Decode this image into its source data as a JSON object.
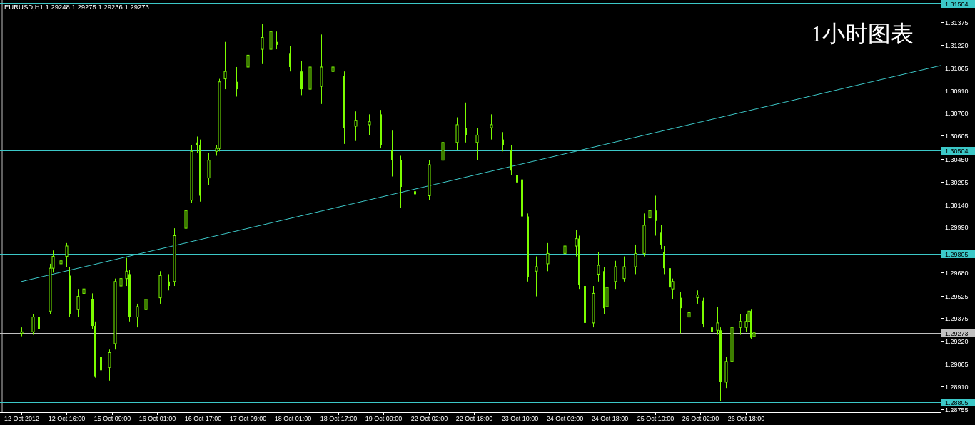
{
  "chart_data": {
    "type": "candlestick",
    "title": "EURUSD,H1  1.29248 1.29275 1.29236 1.29273",
    "annotations": [
      "1小时图表"
    ],
    "color": "#7cfc00",
    "categories": [
      "12 Oct 2012",
      null,
      null,
      null,
      null,
      null,
      null,
      null,
      null,
      null,
      null,
      null,
      null,
      null,
      null,
      null,
      "12 Oct 16:00",
      null,
      null,
      null,
      null,
      null,
      null,
      null,
      null,
      null,
      null,
      null,
      null,
      null,
      null,
      null,
      "15 Oct 09:00",
      null,
      null,
      null,
      null,
      null,
      null,
      null,
      null,
      null,
      null,
      null,
      null,
      null,
      null,
      null,
      "16 Oct 01:00",
      null,
      null,
      null,
      null,
      null,
      null,
      null,
      null,
      null,
      null,
      null,
      null,
      null,
      null,
      null,
      "16 Oct 17:00",
      null,
      null,
      null,
      null,
      null,
      null,
      null,
      null,
      null,
      null,
      null,
      null,
      null,
      null,
      null,
      "17 Oct 09:00",
      null,
      null,
      null,
      null,
      null,
      null,
      null,
      null,
      null,
      null,
      null,
      null,
      null,
      null,
      null,
      "18 Oct 01:00",
      null,
      null,
      null,
      null,
      null,
      null,
      null,
      null,
      null,
      null,
      null,
      null,
      null,
      null,
      null,
      "18 Oct 17:00",
      null,
      null,
      null,
      null,
      null,
      null,
      null,
      null,
      null,
      null,
      null,
      null,
      null,
      null,
      null,
      "19 Oct 09:00",
      null,
      null,
      null,
      null,
      null,
      null,
      null,
      null,
      null,
      null,
      null,
      null,
      null,
      null,
      null,
      "22 Oct 02:00",
      null,
      null,
      null,
      null,
      null,
      null,
      null,
      null,
      null,
      null,
      null,
      null,
      null,
      null,
      null,
      "22 Oct 18:00",
      null,
      null,
      null,
      null,
      null,
      null,
      null,
      null,
      null,
      null,
      null,
      null,
      null,
      null,
      null,
      "23 Oct 10:00",
      null,
      null,
      null,
      null,
      null,
      null,
      null,
      null,
      null,
      null,
      null,
      null,
      null,
      null,
      null,
      "24 Oct 02:00",
      null,
      null,
      null,
      null,
      null,
      null,
      null,
      null,
      null,
      null,
      null,
      null,
      null,
      null,
      null,
      "24 Oct 18:00",
      null,
      null,
      null,
      null,
      null,
      null,
      null,
      null,
      null,
      null,
      null,
      null,
      null,
      null,
      null,
      "25 Oct 10:00",
      null,
      null,
      null,
      null,
      null,
      null,
      null,
      null,
      null,
      null,
      null,
      null,
      null,
      null,
      null,
      "26 Oct 02:00",
      null,
      null,
      null,
      null,
      null,
      null,
      null,
      null,
      null,
      null,
      null,
      null,
      null,
      null,
      null,
      "26 Oct 18:00",
      null,
      null,
      null,
      null,
      null,
      null,
      null,
      null,
      null,
      null,
      null,
      null,
      null,
      null,
      null,
      null,
      null,
      null,
      null,
      null,
      null,
      null,
      null,
      null,
      null,
      null,
      null,
      null,
      null,
      null,
      null,
      null,
      null,
      null,
      null,
      null,
      null,
      null,
      null,
      null,
      null,
      null,
      null,
      null,
      null,
      null,
      null,
      null,
      null,
      null,
      null,
      null,
      null,
      null,
      null,
      null,
      null,
      null,
      null,
      null,
      null,
      null,
      null,
      null,
      null,
      null,
      null,
      null,
      null
    ],
    "ohlc": [
      [
        1.2927,
        1.2931,
        1.2925,
        1.2928
      ],
      null,
      null,
      null,
      [
        1.2928,
        1.294,
        1.2926,
        1.2938
      ],
      null,
      [
        1.2938,
        1.2943,
        1.2926,
        1.293
      ],
      null,
      null,
      null,
      [
        1.2942,
        1.2974,
        1.294,
        1.2971
      ],
      [
        1.2971,
        1.2983,
        1.2968,
        1.2979
      ],
      null,
      null,
      [
        1.2974,
        1.2986,
        1.2964,
        1.2976
      ],
      null,
      [
        1.2979,
        1.2988,
        1.2972,
        1.2986
      ],
      [
        1.2966,
        1.2972,
        1.2938,
        1.294
      ],
      null,
      null,
      [
        1.2943,
        1.2957,
        1.2938,
        1.2952
      ],
      null,
      [
        1.2954,
        1.2959,
        1.2947,
        1.2957
      ],
      null,
      null,
      [
        1.295,
        1.2954,
        1.293,
        1.2932
      ],
      [
        1.2932,
        1.2935,
        1.2897,
        1.2898
      ],
      null,
      [
        1.2911,
        1.2914,
        1.2892,
        1.2902
      ],
      null,
      null,
      [
        1.2904,
        1.2916,
        1.2895,
        1.2914
      ],
      null,
      [
        1.292,
        1.2964,
        1.2916,
        1.2962
      ],
      null,
      [
        1.2959,
        1.2969,
        1.2952,
        1.2964
      ],
      null,
      [
        1.2964,
        1.2978,
        1.2959,
        1.2969
      ],
      [
        1.2967,
        1.297,
        1.2935,
        1.2938
      ],
      null,
      null,
      [
        1.2938,
        1.2947,
        1.2931,
        1.2945
      ],
      null,
      null,
      [
        1.2943,
        1.2952,
        1.2935,
        1.295
      ],
      null,
      null,
      null,
      null,
      [
        1.2951,
        1.2969,
        1.2947,
        1.2966
      ],
      null,
      null,
      [
        1.2962,
        1.2967,
        1.2956,
        1.2959
      ],
      null,
      [
        1.2962,
        1.2998,
        1.2959,
        1.2993
      ],
      null,
      null,
      null,
      [
        1.2998,
        1.3013,
        1.2993,
        1.301
      ],
      null,
      [
        1.3017,
        1.3054,
        1.3015,
        1.305
      ],
      null,
      [
        1.3056,
        1.306,
        1.3049,
        1.3054
      ],
      [
        1.3054,
        1.3058,
        1.3016,
        1.302
      ],
      null,
      null,
      [
        1.3032,
        1.3049,
        1.3027,
        1.3044
      ],
      null,
      null,
      [
        1.305,
        1.3054,
        1.3047,
        1.3052
      ],
      [
        1.3052,
        1.3099,
        1.305,
        1.3097
      ],
      null,
      [
        1.3099,
        1.3124,
        1.3092,
        1.3104
      ],
      null,
      null,
      null,
      [
        1.3097,
        1.3107,
        1.3087,
        1.3092
      ],
      null,
      null,
      null,
      [
        1.3107,
        1.3118,
        1.3099,
        1.3115
      ],
      null,
      null,
      null,
      null,
      [
        1.3119,
        1.3136,
        1.3109,
        1.3127
      ],
      null,
      null,
      [
        1.3119,
        1.3139,
        1.3114,
        1.3131
      ],
      null,
      [
        1.3124,
        1.3131,
        1.3119,
        1.3122
      ],
      null,
      null,
      null,
      null,
      [
        1.3116,
        1.3121,
        1.3104,
        1.3107
      ],
      null,
      null,
      null,
      [
        1.3104,
        1.3111,
        1.3088,
        1.3092
      ],
      null,
      null,
      [
        1.3092,
        1.312,
        1.309,
        1.3107
      ],
      null,
      null,
      null,
      [
        1.3094,
        1.3129,
        1.3082,
        1.3107
      ],
      null,
      null,
      null,
      [
        1.3104,
        1.3118,
        1.3094,
        1.3107
      ],
      null,
      null,
      null,
      [
        1.3101,
        1.3104,
        1.3055,
        1.3066
      ],
      null,
      null,
      null,
      [
        1.3067,
        1.3077,
        1.3057,
        1.3071
      ],
      null,
      null,
      null,
      null,
      [
        1.3068,
        1.3075,
        1.3061,
        1.307
      ],
      null,
      null,
      null,
      [
        1.3075,
        1.3078,
        1.3052,
        1.3054
      ],
      null,
      null,
      null,
      [
        1.3051,
        1.3064,
        1.3033,
        1.3044
      ],
      null,
      null,
      [
        1.3044,
        1.3047,
        1.3012,
        1.3026
      ],
      null,
      null,
      null,
      null,
      [
        1.3023,
        1.3029,
        1.3015,
        1.3021
      ],
      null,
      null,
      null,
      null,
      [
        1.302,
        1.3044,
        1.3017,
        1.3041
      ],
      null,
      null,
      null,
      null,
      [
        1.3044,
        1.3064,
        1.3024,
        1.3056
      ],
      null,
      null,
      null,
      null,
      [
        1.3056,
        1.3073,
        1.3051,
        1.3068
      ],
      null,
      null,
      [
        1.3066,
        1.3083,
        1.3056,
        1.3061
      ],
      null,
      null,
      null,
      [
        1.3056,
        1.3066,
        1.3044,
        1.3061
      ],
      null,
      null,
      null,
      null,
      [
        1.3066,
        1.3075,
        1.3058,
        1.3068
      ],
      null,
      null,
      null,
      [
        1.3058,
        1.3063,
        1.305,
        1.3054
      ],
      null,
      null,
      [
        1.3051,
        1.3054,
        1.3034,
        1.3037
      ],
      null,
      [
        1.3034,
        1.3041,
        1.3025,
        1.3029
      ],
      null,
      [
        1.3031,
        1.3034,
        1.2999,
        1.3006
      ],
      null,
      [
        1.3006,
        1.3008,
        1.2962,
        1.2965
      ],
      null,
      null,
      [
        1.2969,
        1.2979,
        1.2952,
        1.2972
      ],
      null,
      null,
      null,
      [
        1.2974,
        1.2988,
        1.2969,
        1.2981
      ],
      null,
      null,
      null,
      null,
      null,
      [
        1.2981,
        1.2993,
        1.2976,
        1.2986
      ],
      null,
      null,
      null,
      [
        1.2986,
        1.2997,
        1.2979,
        1.2991
      ],
      [
        1.2991,
        1.2993,
        1.2957,
        1.296
      ],
      null,
      [
        1.2959,
        1.2962,
        1.292,
        1.2934
      ],
      null,
      null,
      [
        1.2934,
        1.2959,
        1.2931,
        1.2954
      ],
      null,
      [
        1.2967,
        1.2982,
        1.2962,
        1.2973
      ],
      null,
      [
        1.2969,
        1.2972,
        1.294,
        1.2944
      ],
      [
        1.2945,
        1.2964,
        1.294,
        1.2958
      ],
      null,
      null,
      [
        1.2962,
        1.2976,
        1.2957,
        1.2972
      ],
      null,
      null,
      [
        1.2964,
        1.2979,
        1.2962,
        1.2972
      ],
      null,
      null,
      null,
      [
        1.2972,
        1.2987,
        1.2967,
        1.2981
      ],
      null,
      null,
      [
        1.2981,
        1.3008,
        1.2979,
        1.3
      ],
      null,
      [
        1.3005,
        1.3022,
        1.3003,
        1.301
      ],
      null,
      [
        1.301,
        1.302,
        1.2993,
        1.3003
      ],
      null,
      [
        1.2995,
        1.3,
        1.2984,
        1.2987
      ],
      [
        1.2982,
        1.2986,
        1.2967,
        1.2971
      ],
      null,
      [
        1.2971,
        1.2974,
        1.2955,
        1.2958
      ],
      [
        1.2957,
        1.2964,
        1.295,
        1.2962
      ],
      null,
      null,
      [
        1.2951,
        1.2955,
        1.2927,
        1.2944
      ],
      null,
      null,
      [
        1.2938,
        1.2947,
        1.2933,
        1.2941
      ],
      null,
      null,
      [
        1.2951,
        1.2956,
        1.2947,
        1.2953
      ],
      null,
      [
        1.2949,
        1.2951,
        1.2931,
        1.2933
      ],
      null,
      null,
      [
        1.2931,
        1.294,
        1.2915,
        1.2928
      ],
      null,
      [
        1.2929,
        1.2945,
        1.2926,
        1.2934
      ],
      [
        1.2929,
        1.2931,
        1.2881,
        1.2894
      ],
      null,
      [
        1.2894,
        1.2911,
        1.289,
        1.2908
      ],
      null,
      [
        1.2908,
        1.2955,
        1.2906,
        1.2931
      ],
      null,
      null,
      [
        1.2931,
        1.294,
        1.2926,
        1.2935
      ],
      null,
      [
        1.2931,
        1.294,
        1.2928,
        1.2935
      ],
      [
        1.2935,
        1.2943,
        1.2933,
        1.2942
      ],
      [
        1.2942,
        1.2943,
        1.2923,
        1.2924
      ],
      [
        1.29248,
        1.29275,
        1.29236,
        1.29273
      ],
      null,
      null,
      null,
      null,
      null,
      null,
      null,
      null,
      null,
      null,
      null,
      null,
      null,
      null,
      null,
      null,
      null,
      null,
      null,
      null,
      null,
      null,
      null,
      null,
      null,
      null,
      null,
      null,
      null,
      null,
      null,
      null,
      null,
      null,
      null,
      null,
      null,
      null,
      null,
      null,
      null,
      null,
      null,
      null,
      null,
      null,
      null,
      null,
      null,
      null,
      null,
      null,
      null,
      null,
      null,
      null,
      null,
      null,
      null,
      null,
      null,
      null,
      null,
      null,
      null,
      null
    ],
    "series": [
      {
        "type": "line",
        "color": "#3cc8c8",
        "values": [
          1.2962,
          null,
          null,
          null,
          null,
          null,
          null,
          null,
          null,
          null,
          null,
          null,
          null,
          null,
          null,
          null,
          null,
          null,
          null,
          null,
          null,
          null,
          null,
          null,
          null,
          null,
          null,
          null,
          null,
          null,
          null,
          null,
          null,
          null,
          null,
          null,
          null,
          null,
          null,
          null,
          null,
          null,
          null,
          null,
          null,
          null,
          null,
          null,
          null,
          null,
          null,
          null,
          null,
          null,
          null,
          null,
          null,
          null,
          null,
          null,
          null,
          null,
          null,
          null,
          null,
          null,
          null,
          null,
          null,
          null,
          null,
          null,
          null,
          null,
          null,
          null,
          null,
          null,
          null,
          null,
          null,
          null,
          null,
          null,
          null,
          null,
          null,
          null,
          null,
          null,
          null,
          null,
          null,
          null,
          null,
          null,
          null,
          null,
          null,
          null,
          null,
          null,
          null,
          null,
          null,
          null,
          null,
          null,
          null,
          null,
          null,
          null,
          null,
          null,
          null,
          null,
          null,
          null,
          null,
          null,
          null,
          null,
          null,
          null,
          null,
          null,
          null,
          null,
          null,
          null,
          null,
          null,
          null,
          null,
          null,
          null,
          null,
          null,
          null,
          null,
          null,
          null,
          null,
          null,
          null,
          null,
          null,
          null,
          null,
          null,
          null,
          null,
          null,
          null,
          null,
          null,
          null,
          null,
          null,
          null,
          null,
          null,
          null,
          null,
          null,
          null,
          null,
          null,
          null,
          null,
          null,
          null,
          null,
          null,
          null,
          null,
          null,
          null,
          null,
          null,
          null,
          null,
          null,
          null,
          null,
          null,
          null,
          null,
          null,
          null,
          null,
          null,
          null,
          null,
          null,
          null,
          null,
          null,
          null,
          null,
          null,
          null,
          null,
          null,
          null,
          null,
          null,
          null,
          null,
          null,
          null,
          null,
          null,
          null,
          null,
          null,
          null,
          null,
          null,
          null,
          null,
          null,
          null,
          null,
          null,
          null,
          null,
          null,
          null,
          null,
          null,
          null,
          null,
          null,
          null,
          null,
          null,
          null,
          null,
          null,
          null,
          null,
          null,
          null,
          null,
          null,
          null,
          null,
          null,
          null,
          null,
          null,
          null,
          null,
          null,
          null,
          null,
          null,
          null,
          null,
          null,
          null,
          null,
          null,
          null,
          null,
          null,
          null,
          null,
          null,
          null,
          null,
          null,
          null,
          null,
          null,
          null,
          null,
          null,
          null,
          null,
          null,
          null,
          null,
          null,
          null,
          null,
          null,
          null,
          null,
          null,
          null,
          null,
          null,
          null,
          null,
          null,
          null,
          null,
          null,
          null,
          null,
          null,
          null,
          null,
          null,
          null,
          null,
          null,
          null,
          null,
          null,
          null,
          null,
          null,
          null,
          null,
          null,
          null,
          null,
          null,
          null,
          null,
          null,
          null,
          1.3108
        ]
      }
    ],
    "ylim": [
      1.28737,
      1.31523
    ],
    "yticks": [
      {
        "value": 1.31375,
        "label": "1.31375"
      },
      {
        "value": 1.3122,
        "label": "1.31220"
      },
      {
        "value": 1.31065,
        "label": "1.31065"
      },
      {
        "value": 1.3091,
        "label": "1.30910"
      },
      {
        "value": 1.3076,
        "label": "1.30760"
      },
      {
        "value": 1.30605,
        "label": "1.30605"
      },
      {
        "value": 1.3045,
        "label": "1.30450"
      },
      {
        "value": 1.30295,
        "label": "1.30295"
      },
      {
        "value": 1.3014,
        "label": "1.30140"
      },
      {
        "value": 1.2999,
        "label": "1.29990"
      },
      {
        "value": 1.2968,
        "label": "1.29680"
      },
      {
        "value": 1.29525,
        "label": "1.29525"
      },
      {
        "value": 1.29375,
        "label": "1.29375"
      },
      {
        "value": 1.2922,
        "label": "1.29220"
      },
      {
        "value": 1.29065,
        "label": "1.29065"
      },
      {
        "value": 1.2891,
        "label": "1.28910"
      },
      {
        "value": 1.28755,
        "label": "1.28755"
      }
    ],
    "ref_lines": [
      {
        "axis": "y",
        "value": 1.31504,
        "label": "1.31504",
        "color": "#3cc8c8"
      },
      {
        "axis": "y",
        "value": 1.30504,
        "label": "1.30504",
        "color": "#3cc8c8"
      },
      {
        "axis": "y",
        "value": 1.29805,
        "label": "1.29805",
        "color": "#3cc8c8"
      },
      {
        "axis": "y",
        "value": 1.29273,
        "label": "1.29273",
        "color": "#c0c0c0"
      },
      {
        "axis": "y",
        "value": 1.28805,
        "label": "1.28805",
        "color": "#3cc8c8"
      }
    ]
  }
}
